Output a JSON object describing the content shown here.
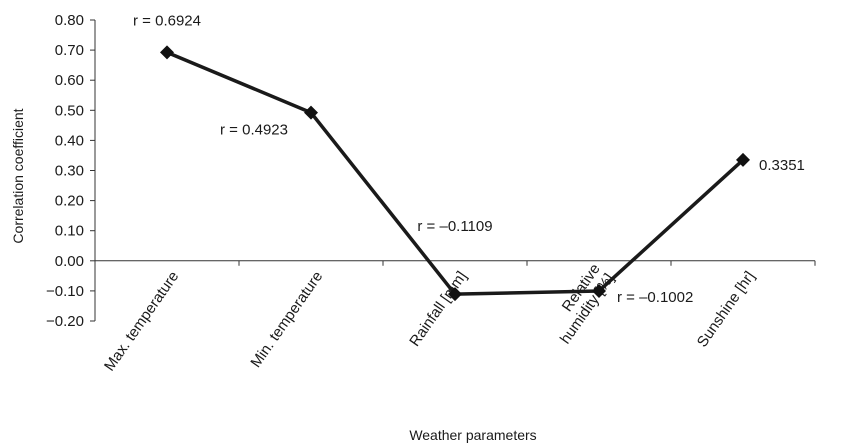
{
  "chart_data": {
    "type": "line",
    "title": "",
    "xlabel": "Weather parameters",
    "ylabel": "Correlation coefficient",
    "ylim": [
      -0.2,
      0.8
    ],
    "yticks": [
      0.8,
      0.7,
      0.6,
      0.5,
      0.4,
      0.3,
      0.2,
      0.1,
      0.0,
      -0.1,
      -0.2
    ],
    "ytick_labels": [
      "0.80",
      "0.70",
      "0.60",
      "0.50",
      "0.40",
      "0.30",
      "0.20",
      "0.10",
      "0.00",
      "−0.10",
      "−0.20"
    ],
    "categories": [
      "Max. temperature",
      "Min. temperature",
      "Rainfall [mm]",
      "Relative humidity [%]",
      "Sunshine [hr]"
    ],
    "category_label_lines": [
      [
        "Max. temperature"
      ],
      [
        "Min. temperature"
      ],
      [
        "Rainfall [mm]"
      ],
      [
        "Relative",
        "humidity [%]"
      ],
      [
        "Sunshine [hr]"
      ]
    ],
    "values": [
      0.6924,
      0.4923,
      -0.1109,
      -0.1002,
      0.3351
    ],
    "data_labels": [
      "r = 0.6924",
      "r = 0.4923",
      "r = –0.1109",
      "r = –0.1002",
      "0.3351"
    ],
    "grid": false,
    "legend": "none",
    "marker": "diamond",
    "line_color": "#1a1a1a"
  }
}
